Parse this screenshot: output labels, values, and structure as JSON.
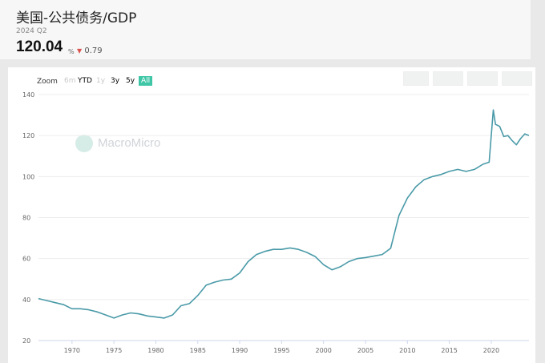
{
  "header": {
    "title": "美国-公共债务/GDP",
    "period": "2024 Q2",
    "value": "120.04",
    "unit": "%",
    "change": "0.79"
  },
  "zoom": {
    "label": "Zoom",
    "options": [
      "6m",
      "YTD",
      "1y",
      "3y",
      "5y",
      "All"
    ],
    "selected": "All"
  },
  "watermark": "MacroMicro",
  "colors": {
    "line": "#4a9aa8",
    "accent": "#3ec6a6",
    "down": "#d9534f"
  },
  "chart_data": {
    "type": "line",
    "title": "美国-公共债务/GDP",
    "xlabel": "",
    "ylabel": "",
    "xlim": [
      1966,
      2024.5
    ],
    "ylim": [
      20,
      140
    ],
    "yticks": [
      20,
      40,
      60,
      80,
      100,
      120,
      140
    ],
    "xticks": [
      1970,
      1975,
      1980,
      1985,
      1990,
      1995,
      2000,
      2005,
      2010,
      2015,
      2020
    ],
    "grid": true,
    "x": [
      1966,
      1967,
      1968,
      1969,
      1970,
      1971,
      1972,
      1973,
      1974,
      1975,
      1976,
      1977,
      1978,
      1979,
      1980,
      1981,
      1982,
      1983,
      1984,
      1985,
      1986,
      1987,
      1988,
      1989,
      1990,
      1991,
      1992,
      1993,
      1994,
      1995,
      1996,
      1997,
      1998,
      1999,
      2000,
      2001,
      2002,
      2003,
      2004,
      2005,
      2006,
      2007,
      2008,
      2009,
      2010,
      2011,
      2012,
      2013,
      2014,
      2015,
      2016,
      2017,
      2018,
      2019,
      2019.75,
      2020.25,
      2020.5,
      2021,
      2021.5,
      2022,
      2022.5,
      2023,
      2023.5,
      2024,
      2024.5
    ],
    "y": [
      40.5,
      39.5,
      38.5,
      37.5,
      35.5,
      35.5,
      35,
      34,
      32.5,
      31,
      32.5,
      33.5,
      33,
      32,
      31.5,
      31,
      32.5,
      37,
      38,
      42,
      47,
      48.5,
      49.5,
      50,
      53,
      58.5,
      62,
      63.5,
      64.5,
      64.5,
      65.2,
      64.5,
      63,
      61,
      57,
      54.5,
      56,
      58.5,
      60,
      60.5,
      61.2,
      62,
      65,
      81,
      89.5,
      95,
      98.5,
      100,
      101,
      102.5,
      103.5,
      102.5,
      103.5,
      106,
      107,
      132.5,
      125.5,
      124.5,
      119.5,
      120,
      117.5,
      115.5,
      118.5,
      120.8,
      120.04
    ],
    "series": [
      {
        "name": "",
        "color": "#4a9aa8"
      }
    ]
  }
}
